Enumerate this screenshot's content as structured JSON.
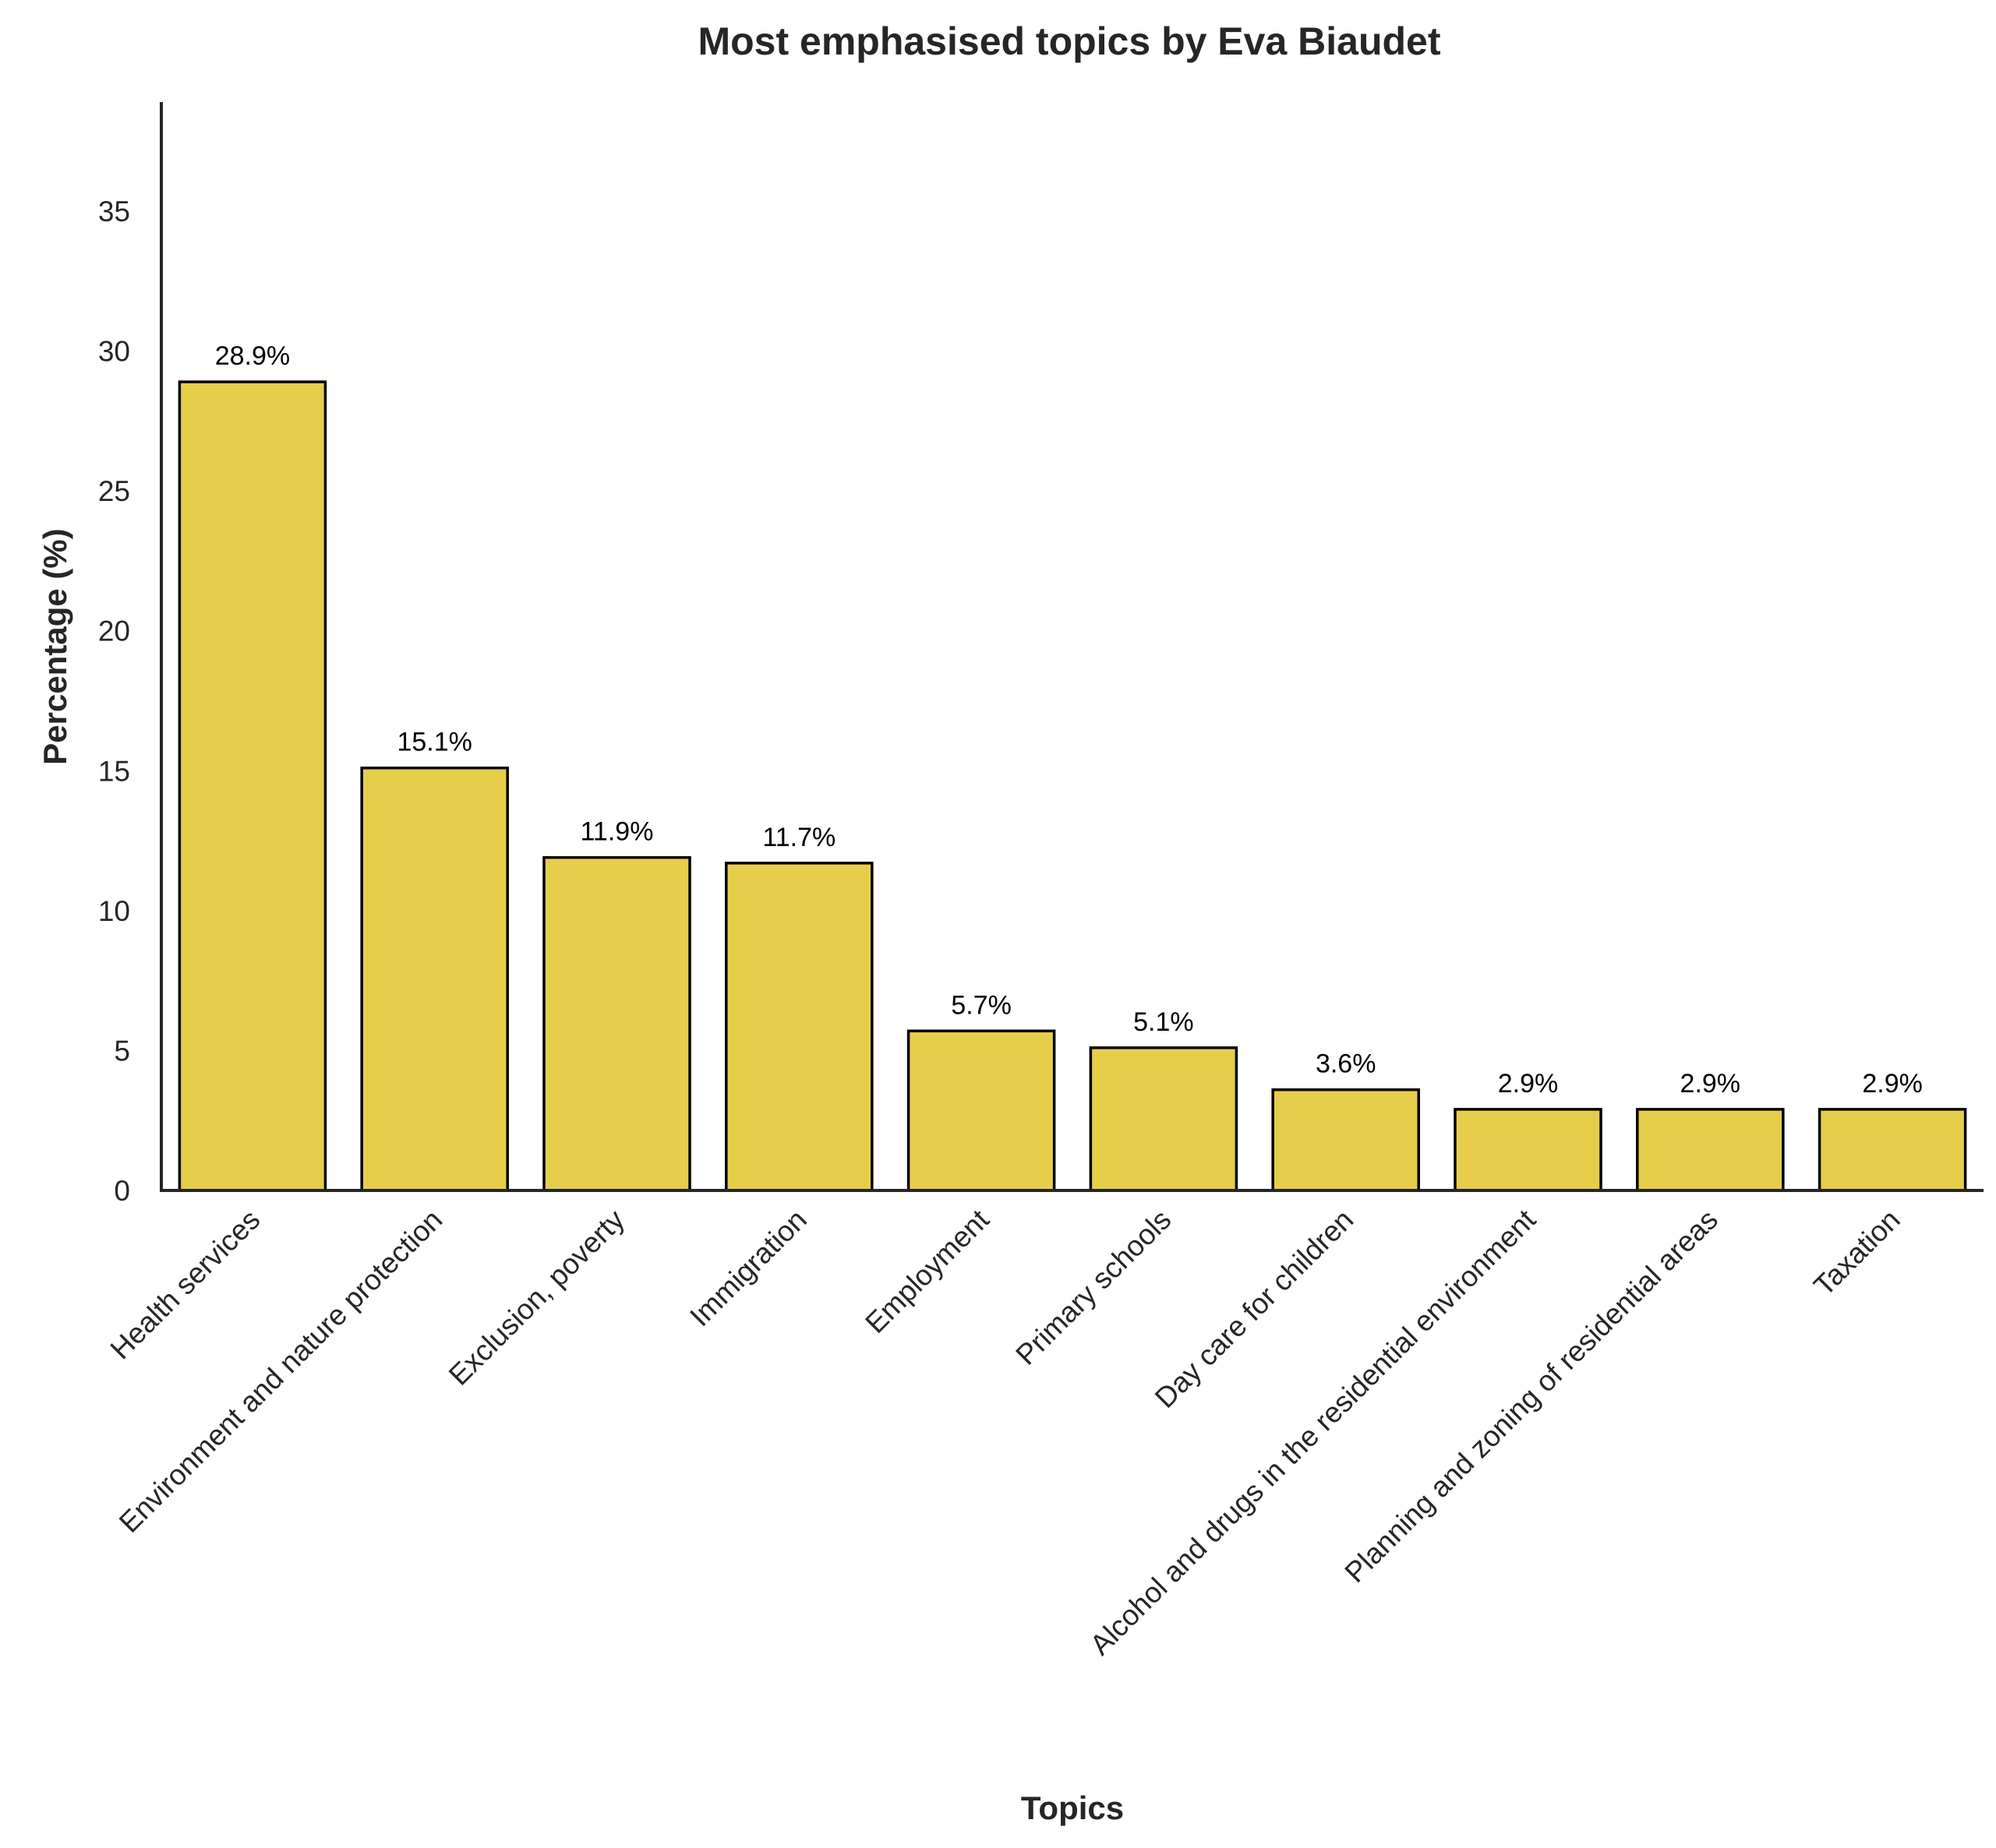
{
  "chart_data": {
    "type": "bar",
    "title": "Most emphasised topics by Eva Biaudet",
    "xlabel": "Topics",
    "ylabel": "Percentage (%)",
    "categories": [
      "Health services",
      "Environment and nature protection",
      "Exclusion, poverty",
      "Immigration",
      "Employment",
      "Primary schools",
      "Day care for children",
      "Alcohol and drugs in the residential environment",
      "Planning and zoning of residential areas",
      "Taxation"
    ],
    "values": [
      28.9,
      15.1,
      11.9,
      11.7,
      5.7,
      5.1,
      3.6,
      2.9,
      2.9,
      2.9
    ],
    "data_labels": [
      "28.9%",
      "15.1%",
      "11.9%",
      "11.7%",
      "5.7%",
      "5.1%",
      "3.6%",
      "2.9%",
      "2.9%",
      "2.9%"
    ],
    "ylim": [
      0,
      38.9
    ],
    "yticks": [
      0,
      5,
      10,
      15,
      20,
      25,
      30,
      35
    ],
    "grid": false,
    "legend": "none",
    "bar_color": "#E6CE4B",
    "bar_edge_color": "#000000"
  }
}
